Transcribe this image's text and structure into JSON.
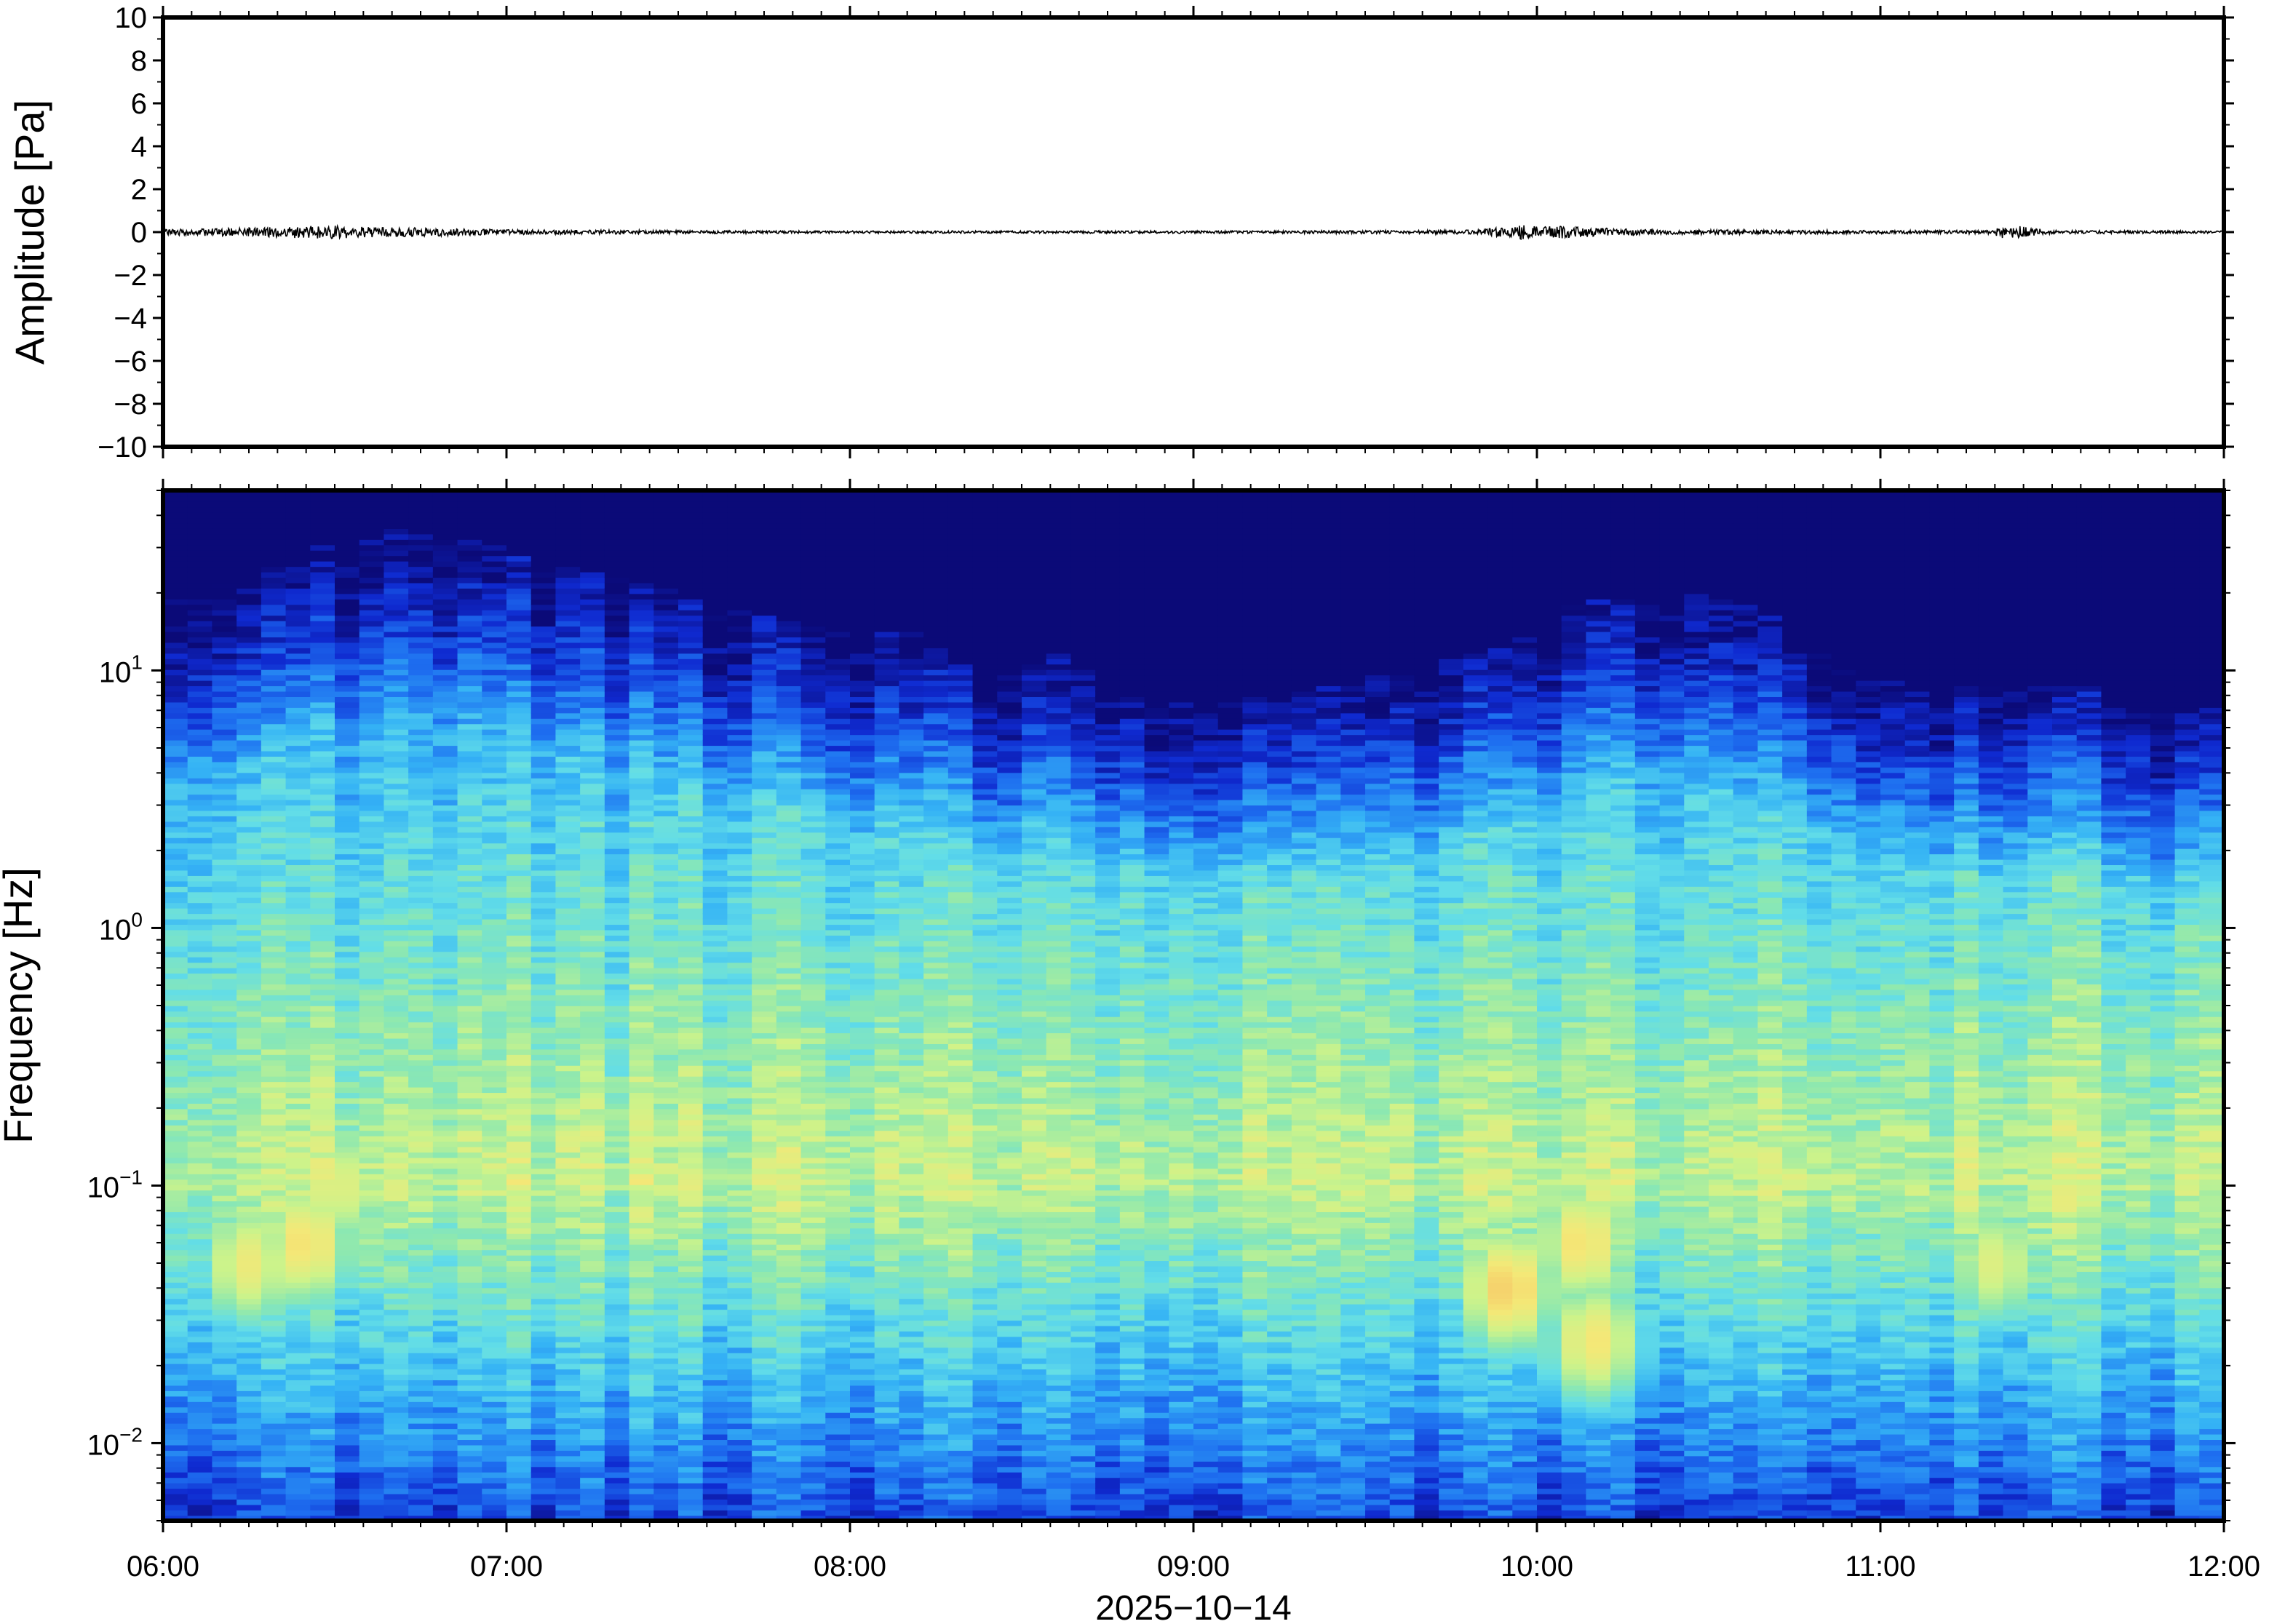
{
  "chart_data": [
    {
      "type": "line",
      "ylabel": "Amplitude [Pa]",
      "ylim": [
        -10,
        10
      ],
      "yticks": [
        10,
        8,
        6,
        4,
        2,
        0,
        -2,
        -4,
        -6,
        -8,
        -10
      ],
      "ytick_labels": [
        "10",
        "8",
        "6",
        "4",
        "2",
        "0",
        "−2",
        "−4",
        "−6",
        "−8",
        "−10"
      ],
      "xlim": [
        "06:00",
        "12:00"
      ],
      "line_color": "#000000",
      "series": [
        {
          "x": [
            "06:00",
            "06:15",
            "06:20",
            "06:25",
            "06:30",
            "06:35",
            "06:45",
            "07:00",
            "07:15",
            "07:30",
            "08:00",
            "08:30",
            "09:00",
            "09:30",
            "09:50",
            "09:55",
            "09:58",
            "10:00",
            "10:05",
            "10:10",
            "10:20",
            "10:40",
            "11:00",
            "11:15",
            "11:20",
            "11:21",
            "11:30",
            "12:00"
          ],
          "values": [
            0.15,
            0.2,
            0.25,
            0.3,
            0.3,
            0.25,
            0.2,
            0.12,
            0.1,
            0.08,
            0.06,
            0.06,
            0.06,
            0.07,
            0.1,
            0.3,
            0.35,
            0.25,
            0.3,
            0.2,
            0.12,
            0.1,
            0.08,
            0.08,
            0.1,
            0.4,
            0.08,
            0.06
          ]
        }
      ]
    },
    {
      "type": "heatmap",
      "ylabel": "Frequency [Hz]",
      "yscale": "log",
      "ylim": [
        0.005,
        50
      ],
      "yticks": [
        0.01,
        0.1,
        1,
        10
      ],
      "ytick_labels": [
        {
          "base": "10",
          "exp": "−2"
        },
        {
          "base": "10",
          "exp": "−1"
        },
        {
          "base": "10",
          "exp": "0"
        },
        {
          "base": "10",
          "exp": "1"
        }
      ],
      "xlim": [
        "06:00",
        "12:00"
      ],
      "xticks": [
        "06:00",
        "07:00",
        "08:00",
        "09:00",
        "10:00",
        "11:00",
        "12:00"
      ],
      "xlabel": "2025−10−14",
      "colormap": [
        "#0b0a78",
        "#0f2ad0",
        "#1e6ff0",
        "#35b3f5",
        "#62dde8",
        "#8de8b0",
        "#cdf38a",
        "#f4e877",
        "#f7bd62"
      ],
      "upper_edge_hz": [
        12,
        13,
        17,
        20,
        18,
        15,
        13,
        11,
        9,
        8,
        8,
        5,
        6.5,
        5,
        4.5,
        4.5,
        5,
        6,
        7,
        10,
        12,
        11,
        8,
        5.5,
        5,
        5,
        5,
        4
      ],
      "hotspots": [
        {
          "time": "06:25",
          "freq_hz": 0.06,
          "level": 0.9
        },
        {
          "time": "06:15",
          "freq_hz": 0.05,
          "level": 0.85
        },
        {
          "time": "06:30",
          "freq_hz": 0.1,
          "level": 0.82
        },
        {
          "time": "09:55",
          "freq_hz": 0.04,
          "level": 0.95
        },
        {
          "time": "10:08",
          "freq_hz": 0.06,
          "level": 0.9
        },
        {
          "time": "10:10",
          "freq_hz": 0.025,
          "level": 0.88
        },
        {
          "time": "11:20",
          "freq_hz": 0.05,
          "level": 0.8
        }
      ]
    }
  ]
}
